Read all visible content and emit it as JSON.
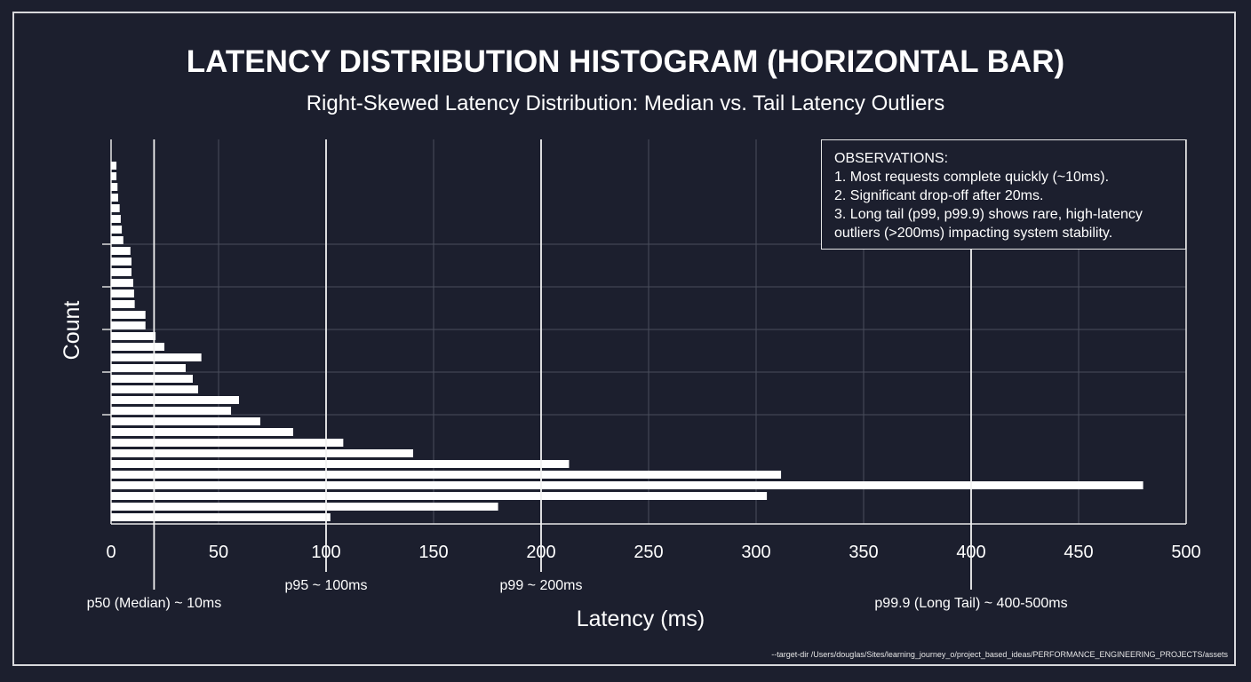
{
  "chart_data": {
    "type": "bar",
    "orientation": "horizontal",
    "title": "LATENCY DISTRIBUTION HISTOGRAM (HORIZONTAL BAR)",
    "subtitle": "Right-Skewed Latency Distribution: Median vs. Tail Latency Outliers",
    "xlabel": "Latency (ms)",
    "ylabel": "Count",
    "xlim": [
      0,
      500
    ],
    "xticks": [
      "0",
      "50",
      "100",
      "150",
      "200",
      "250",
      "300",
      "350",
      "400",
      "450",
      "500"
    ],
    "grid": true,
    "bar_color": "#ffffff",
    "values": [
      2.5,
      2.5,
      3,
      3.3,
      4,
      4.5,
      5,
      5.7,
      9,
      9.5,
      9.5,
      10.3,
      10.7,
      11,
      16,
      16,
      20.7,
      24.8,
      42,
      34.7,
      38,
      40.5,
      59.5,
      55.8,
      69.4,
      84.7,
      108,
      140.5,
      213,
      311.6,
      480,
      305,
      180,
      102
    ],
    "markers": [
      {
        "x": 20,
        "label": "p50 (Median) ~ 10ms"
      },
      {
        "x": 100,
        "label": "p95 ~ 100ms"
      },
      {
        "x": 200,
        "label": "p99 ~ 200ms"
      },
      {
        "x": 400,
        "label": "p99.9 (Long Tail) ~ 400-500ms"
      }
    ],
    "annotation": {
      "heading": "OBSERVATIONS:",
      "lines": [
        "1. Most requests complete quickly (~10ms).",
        "2. Significant drop-off after 20ms.",
        "3. Long tail (p99, p99.9) shows rare, high-latency outliers (>200ms) impacting system stability."
      ]
    }
  },
  "footer": "--target-dir /Users/douglas/Sites/learning_journey_o/project_based_ideas/PERFORMANCE_ENGINEERING_PROJECTS/assets"
}
